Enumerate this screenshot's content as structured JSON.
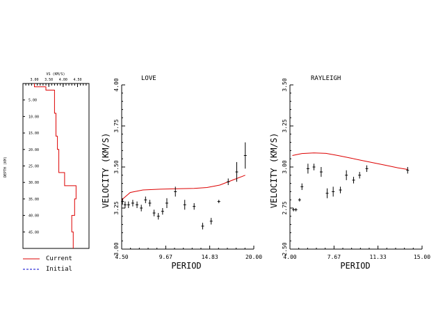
{
  "chart_data": [
    {
      "type": "line",
      "panel": "depth-profile",
      "title": "VS (KM/S)",
      "ylabel": "DEPTH (KM)",
      "x_ticks": [
        "3.00",
        "3.50",
        "4.00",
        "4.50"
      ],
      "y_ticks": [
        "5.00",
        "10.00",
        "15.00",
        "20.00",
        "25.00",
        "30.00",
        "35.00",
        "40.00",
        "45.00"
      ],
      "xlim": [
        2.6,
        4.9
      ],
      "ylim": [
        0,
        50
      ],
      "series": [
        {
          "name": "Current",
          "color": "#dd0000",
          "points": [
            [
              3.0,
              0
            ],
            [
              3.0,
              1
            ],
            [
              3.4,
              1
            ],
            [
              3.4,
              2
            ],
            [
              3.7,
              2
            ],
            [
              3.7,
              9
            ],
            [
              3.75,
              9
            ],
            [
              3.75,
              16
            ],
            [
              3.8,
              16
            ],
            [
              3.8,
              20
            ],
            [
              3.85,
              20
            ],
            [
              3.85,
              27
            ],
            [
              4.05,
              27
            ],
            [
              4.05,
              31
            ],
            [
              4.45,
              31
            ],
            [
              4.45,
              35
            ],
            [
              4.4,
              35
            ],
            [
              4.4,
              40
            ],
            [
              4.3,
              40
            ],
            [
              4.3,
              45
            ],
            [
              4.35,
              45
            ],
            [
              4.35,
              50
            ]
          ]
        }
      ]
    },
    {
      "type": "scatter",
      "panel": "love",
      "title": "LOVE",
      "xlabel": "PERIOD",
      "ylabel": "VELOCITY (KM/S)",
      "x_ticks": [
        "4.50",
        "9.67",
        "14.83",
        "20.00"
      ],
      "y_ticks": [
        "3.00",
        "3.25",
        "3.50",
        "3.75",
        "4.00"
      ],
      "xlim": [
        4.5,
        20.0
      ],
      "ylim": [
        3.0,
        4.0
      ],
      "observed": [
        {
          "x": 4.6,
          "y": 3.29,
          "e": 0.02
        },
        {
          "x": 4.9,
          "y": 3.27,
          "e": 0.02
        },
        {
          "x": 5.3,
          "y": 3.27,
          "e": 0.02
        },
        {
          "x": 5.8,
          "y": 3.28,
          "e": 0.02
        },
        {
          "x": 6.3,
          "y": 3.27,
          "e": 0.02
        },
        {
          "x": 6.8,
          "y": 3.25,
          "e": 0.02
        },
        {
          "x": 7.3,
          "y": 3.3,
          "e": 0.02
        },
        {
          "x": 7.8,
          "y": 3.28,
          "e": 0.02
        },
        {
          "x": 8.3,
          "y": 3.22,
          "e": 0.02
        },
        {
          "x": 8.8,
          "y": 3.2,
          "e": 0.02
        },
        {
          "x": 9.3,
          "y": 3.23,
          "e": 0.02
        },
        {
          "x": 9.8,
          "y": 3.28,
          "e": 0.03
        },
        {
          "x": 10.8,
          "y": 3.35,
          "e": 0.03
        },
        {
          "x": 11.9,
          "y": 3.27,
          "e": 0.03
        },
        {
          "x": 13.0,
          "y": 3.26,
          "e": 0.02
        },
        {
          "x": 14.0,
          "y": 3.14,
          "e": 0.02
        },
        {
          "x": 15.0,
          "y": 3.17,
          "e": 0.02
        },
        {
          "x": 15.9,
          "y": 3.29,
          "e": 0.01
        },
        {
          "x": 17.0,
          "y": 3.41,
          "e": 0.02
        },
        {
          "x": 18.0,
          "y": 3.47,
          "e": 0.06
        },
        {
          "x": 19.0,
          "y": 3.57,
          "e": 0.08
        }
      ],
      "model": {
        "name": "Current",
        "color": "#dd0000",
        "points": [
          [
            4.5,
            3.3
          ],
          [
            5.5,
            3.345
          ],
          [
            7.0,
            3.36
          ],
          [
            9.0,
            3.365
          ],
          [
            11.0,
            3.368
          ],
          [
            13.0,
            3.37
          ],
          [
            14.5,
            3.375
          ],
          [
            16.0,
            3.39
          ],
          [
            17.5,
            3.42
          ],
          [
            19.0,
            3.45
          ]
        ]
      }
    },
    {
      "type": "scatter",
      "panel": "rayleigh",
      "title": "RAYLEIGH",
      "xlabel": "PERIOD",
      "ylabel": "VELOCITY (KM/S)",
      "x_ticks": [
        "4.00",
        "7.67",
        "11.33",
        "15.00"
      ],
      "y_ticks": [
        "2.50",
        "2.75",
        "3.00",
        "3.25",
        "3.50"
      ],
      "xlim": [
        4.0,
        15.0
      ],
      "ylim": [
        2.5,
        3.5
      ],
      "observed": [
        {
          "x": 4.3,
          "y": 2.74,
          "e": 0.01
        },
        {
          "x": 4.5,
          "y": 2.74,
          "e": 0.01
        },
        {
          "x": 4.8,
          "y": 2.8,
          "e": 0.01
        },
        {
          "x": 5.0,
          "y": 2.88,
          "e": 0.02
        },
        {
          "x": 5.5,
          "y": 2.99,
          "e": 0.03
        },
        {
          "x": 6.0,
          "y": 3.0,
          "e": 0.02
        },
        {
          "x": 6.6,
          "y": 2.97,
          "e": 0.03
        },
        {
          "x": 7.1,
          "y": 2.84,
          "e": 0.03
        },
        {
          "x": 7.6,
          "y": 2.85,
          "e": 0.03
        },
        {
          "x": 8.2,
          "y": 2.86,
          "e": 0.02
        },
        {
          "x": 8.7,
          "y": 2.95,
          "e": 0.03
        },
        {
          "x": 9.3,
          "y": 2.92,
          "e": 0.02
        },
        {
          "x": 9.8,
          "y": 2.95,
          "e": 0.02
        },
        {
          "x": 10.4,
          "y": 2.99,
          "e": 0.02
        },
        {
          "x": 13.8,
          "y": 2.98,
          "e": 0.02
        }
      ],
      "model": {
        "name": "Current",
        "color": "#dd0000",
        "points": [
          [
            4.2,
            3.07
          ],
          [
            5.0,
            3.082
          ],
          [
            6.0,
            3.086
          ],
          [
            7.0,
            3.083
          ],
          [
            8.0,
            3.07
          ],
          [
            9.0,
            3.055
          ],
          [
            10.0,
            3.04
          ],
          [
            11.0,
            3.025
          ],
          [
            12.0,
            3.01
          ],
          [
            13.0,
            2.995
          ],
          [
            13.8,
            2.985
          ]
        ]
      }
    }
  ],
  "legend": [
    {
      "label": "Current",
      "color": "#dd0000",
      "style": "solid"
    },
    {
      "label": "Initial",
      "color": "#0000cc",
      "style": "dashed"
    }
  ]
}
